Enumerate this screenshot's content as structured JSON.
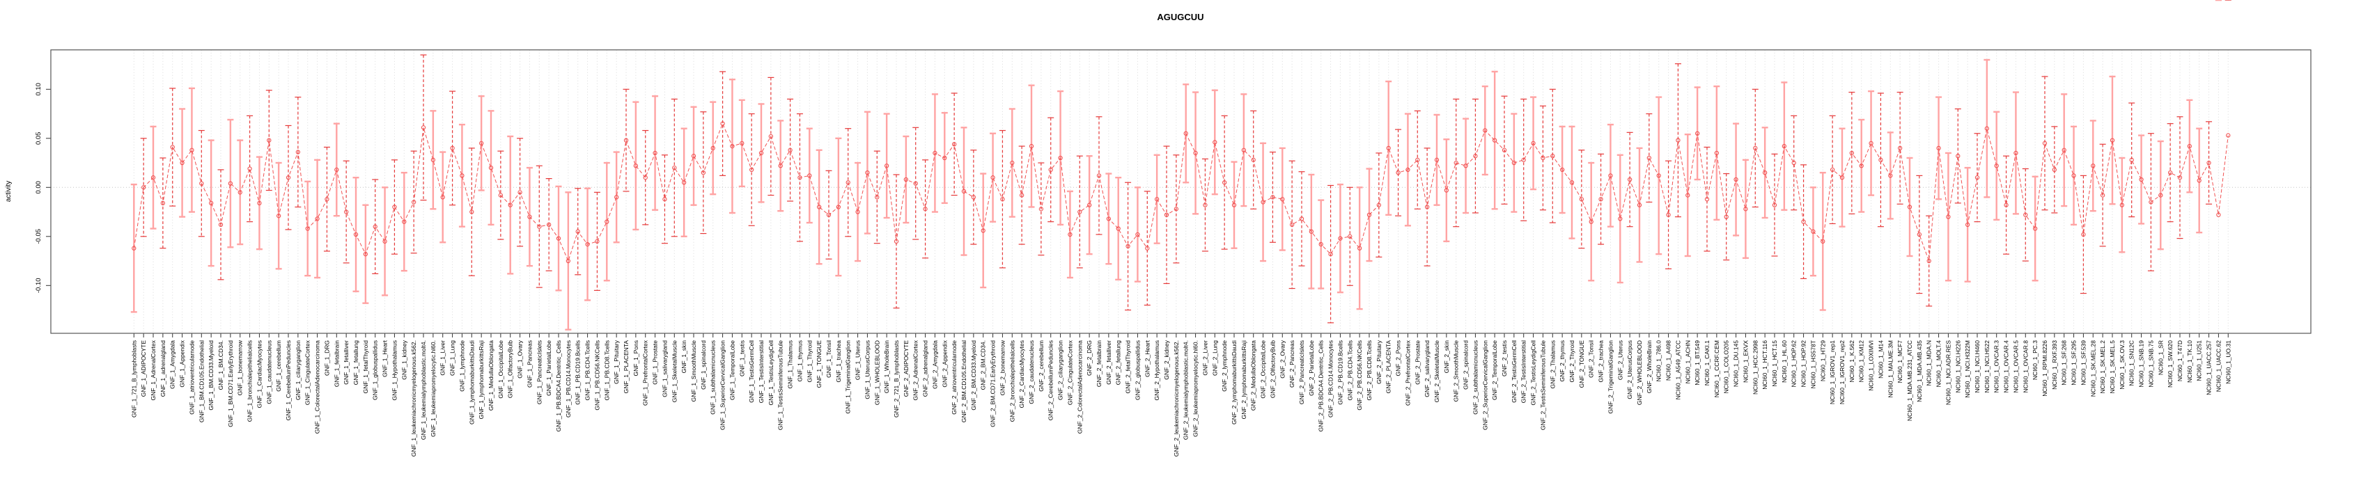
{
  "title": "AGUGCUU",
  "chart_data": {
    "type": "line",
    "title": "AGUGCUU",
    "xlabel": "",
    "ylabel": "activity",
    "ylim": [
      -0.149,
      0.14
    ],
    "yticks": [
      -0.1,
      -0.05,
      0.0,
      0.05,
      0.1
    ],
    "ytick_labels": [
      "-0.10",
      "-0.05",
      "0.00",
      "0.05",
      "0.10"
    ],
    "grid": "dotted vertical line at every category; dotted horizontal line at y=0",
    "legend_position": "none",
    "marker": "open-circle",
    "colors": {
      "line": "#f05050",
      "marker": "#f05050",
      "errorbar_light": "#ffa3a3",
      "errorbar_dark": "#e63939",
      "grid": "#d9d9d9",
      "zero_line": "#c4c4c4",
      "box": "#555555"
    },
    "categories": [
      "GNF_1_721_B_lymphoblasts",
      "GNF_1_ADIPOCYTE",
      "GNF_1_AdrenalCortex",
      "GNF_1_adrenalgland",
      "GNF_1_Amygdala",
      "GNF_1_Appendix",
      "GNF_1_atrioventricularnode",
      "GNF_1_BM.CD105.Endothelial",
      "GNF_1_BM.CD33.Myeloid",
      "GNF_1_BM.CD34.",
      "GNF_1_BM.CD71.EarlyErythroid",
      "GNF_1_bonemarrow",
      "GNF_1_bronchialepithelialcells",
      "GNF_1_CardiacMyocytes",
      "GNF_1_caudatenucleus",
      "GNF_1_cerebellum",
      "GNF_1_CerebellumPeduncles",
      "GNF_1_ciliaryganglion",
      "GNF_1_CingulateCortex",
      "GNF_1_ColorectalAdenocarcinoma",
      "GNF_1_DRG",
      "GNF_1_fetalbrain",
      "GNF_1_fetalliver",
      "GNF_1_fetallung",
      "GNF_1_fetalThyroid",
      "GNF_1_globuspallidus",
      "GNF_1_Heart",
      "GNF_1_Hypothalamus",
      "GNF_1_kidney",
      "GNF_1_leukemiachronicmyelogenous.k562.",
      "GNF_1_leukemialymphoblastic.molt4.",
      "GNF_1_leukemiapromyelocytic.hl60.",
      "GNF_1_Liver",
      "GNF_1_Lung",
      "GNF_1_lymphnode",
      "GNF_1_lymphomaburkittsDaudi",
      "GNF_1_lymphomaburkittsRaji",
      "GNF_1_MedullaOblongata",
      "GNF_1_OccipitalLobe",
      "GNF_1_OlfactoryBulb",
      "GNF_1_Ovary",
      "GNF_1_Pancreas",
      "GNF_1_PancreaticIslets",
      "GNF_1_ParietalLobe",
      "GNF_1_PB.BDCA4.Dentritic_Cells",
      "GNF_1_PB.CD14.Monocytes",
      "GNF_1_PB.CD19.Bcells",
      "GNF_1_PB.CD4.Tcells",
      "GNF_1_PB.CD56.NKCells",
      "GNF_1_PB.CD8.Tcells",
      "GNF_1_Pituitary",
      "GNF_1_PLACENTA",
      "GNF_1_Pons",
      "GNF_1_PrefrontalCortex",
      "GNF_1_Prostate",
      "GNF_1_salivarygland",
      "GNF_1_SkeletalMuscle",
      "GNF_1_skin",
      "GNF_1_SmoothMuscle",
      "GNF_1_spinalcord",
      "GNF_1_subthalamicnucleus",
      "GNF_1_SuperiorCervicalGanglion",
      "GNF_1_TemporalLobe",
      "GNF_1_testis",
      "GNF_1_TestisGermCell",
      "GNF_1_TestisInterstitial",
      "GNF_1_TestisLeydigCell",
      "GNF_1_TestisSeminiferousTubule",
      "GNF_1_Thalamus",
      "GNF_1_thymus",
      "GNF_1_Thyroid",
      "GNF_1_TONGUE",
      "GNF_1_Tonsil",
      "GNF_1_trachea",
      "GNF_1_TrigeminalGanglion",
      "GNF_1_Uterus",
      "GNF_1_UterusCorpus",
      "GNF_1_WHOLEBLOOD",
      "GNF_1_WholeBrain",
      "GNF_2_721_B_lymphoblasts",
      "GNF_2_ADIPOCYTE",
      "GNF_2_AdrenalCortex",
      "GNF_2_adrenalgland",
      "GNF_2_Amygdala",
      "GNF_2_Appendix",
      "GNF_2_atrioventricularnode",
      "GNF_2_BM.CD105.Endothelial",
      "GNF_2_BM.CD33.Myeloid",
      "GNF_2_BM.CD34.",
      "GNF_2_BM.CD71.EarlyErythroid",
      "GNF_2_bonemarrow",
      "GNF_2_bronchialepithelialcells",
      "GNF_2_CardiacMyocytes",
      "GNF_2_caudatenucleus",
      "GNF_2_cerebellum",
      "GNF_2_CerebellumPeduncles",
      "GNF_2_ciliaryganglion",
      "GNF_2_CingulateCortex",
      "GNF_2_ColorectalAdenocarcinoma",
      "GNF_2_DRG",
      "GNF_2_fetalbrain",
      "GNF_2_fetalliver",
      "GNF_2_fetallung",
      "GNF_2_fetalThyroid",
      "GNF_2_globuspallidus",
      "GNF_2_Heart",
      "GNF_2_Hypothalamus",
      "GNF_2_kidney",
      "GNF_2_leukemiachronicmyelogenous.k562.",
      "GNF_2_leukemialymphoblastic.molt4.",
      "GNF_2_leukemiapromyelocytic.hl60.",
      "GNF_2_Liver",
      "GNF_2_Lung",
      "GNF_2_lymphnode",
      "GNF_2_lymphomaburkittsDaudi",
      "GNF_2_lymphomaburkittsRaji",
      "GNF_2_MedullaOblongata",
      "GNF_2_OccipitalLobe",
      "GNF_2_OlfactoryBulb",
      "GNF_2_Ovary",
      "GNF_2_Pancreas",
      "GNF_2_PancreaticIslets",
      "GNF_2_ParietalLobe",
      "GNF_2_PB.BDCA4.Dentritic_Cells",
      "GNF_2_PB.CD14.Monocytes",
      "GNF_2_PB.CD19.Bcells",
      "GNF_2_PB.CD4.Tcells",
      "GNF_2_PB.CD56.NKCells",
      "GNF_2_PB.CD8.Tcells",
      "GNF_2_Pituitary",
      "GNF_2_PLACENTA",
      "GNF_2_Pons",
      "GNF_2_PrefrontalCortex",
      "GNF_2_Prostate",
      "GNF_2_salivarygland",
      "GNF_2_SkeletalMuscle",
      "GNF_2_skin",
      "GNF_2_SmoothMuscle",
      "GNF_2_spinalcord",
      "GNF_2_subthalamicnucleus",
      "GNF_2_SuperiorCervicalGanglion",
      "GNF_2_TemporalLobe",
      "GNF_2_testis",
      "GNF_2_TestisGermCell",
      "GNF_2_TestisInterstitial",
      "GNF_2_TestisLeydigCell",
      "GNF_2_TestisSeminiferousTubule",
      "GNF_2_Thalamus",
      "GNF_2_thymus",
      "GNF_2_Thyroid",
      "GNF_2_TONGUE",
      "GNF_2_Tonsil",
      "GNF_2_trachea",
      "GNF_2_TrigeminalGanglion",
      "GNF_2_Uterus",
      "GNF_2_UterusCorpus",
      "GNF_2_WHOLEBLOOD",
      "GNF_2_WholeBrain",
      "NCI60_1_786.0",
      "NCI60_1_A498",
      "NCI60_1_A549_ATCC",
      "NCI60_1_ACHN",
      "NCI60_1_BT.549",
      "NCI60_1_CAKI.1",
      "NCI60_1_CCRF.CEM",
      "NCI60_1_COLO205",
      "NCI60_1_DU.145",
      "NCI60_1_EKVX",
      "NCI60_1_HCC.2998",
      "NCI60_1_HCT.116",
      "NCI60_1_HCT.15",
      "NCI60_1_HL.60",
      "NCI60_1_HOP.62",
      "NCI60_1_HOP.92",
      "NCI60_1_HS578T",
      "NCI60_1_HT29",
      "NCI60_1_IGROV1_rep1",
      "NCI60_1_IGROV1_rep2",
      "NCI60_1_K.562",
      "NCI60_1_KM12",
      "NCI60_1_LOXIMVI",
      "NCI60_1_M14",
      "NCI60_1_MALME.3M",
      "NCI60_1_MCF7",
      "NCI60_1_MDA.MB.231_ATCC",
      "NCI60_1_MDA.MB.435",
      "NCI60_1_MDA.N",
      "NCI60_1_MOLT.4",
      "NCI60_1_NCI.ADR.RES",
      "NCI60_1_NCI.H226",
      "NCI60_1_NCI.H322M",
      "NCI60_1_NCI.H460",
      "NCI60_1_NCI.H522",
      "NCI60_1_OVCAR.3",
      "NCI60_1_OVCAR.4",
      "NCI60_1_OVCAR.5",
      "NCI60_1_OVCAR.8",
      "NCI60_1_PC.3",
      "NCI60_1_RPMI.8226",
      "NCI60_1_RXF.393",
      "NCI60_1_SF.268",
      "NCI60_1_SF.295",
      "NCI60_1_SF.539",
      "NCI60_1_SK.MEL.28",
      "NCI60_1_SK.MEL.2",
      "NCI60_1_SK.MEL.5",
      "NCI60_1_SK.OV.3",
      "NCI60_1_SN12C",
      "NCI60_1_SNB.19",
      "NCI60_1_SNB.75",
      "NCI60_1_SR",
      "NCI60_1_SW.620",
      "NCI60_1_T47D",
      "NCI60_1_TK.10",
      "NCI60_1_U251",
      "NCI60_1_UACC.257",
      "NCI60_1_UACC.62",
      "NCI60_1_UO.31"
    ],
    "series": [
      {
        "name": "activity",
        "values": [
          -0.062,
          0.0,
          0.01,
          -0.016,
          0.041,
          0.025,
          0.038,
          0.004,
          -0.016,
          -0.038,
          0.004,
          -0.005,
          0.019,
          -0.016,
          0.048,
          -0.029,
          0.01,
          0.036,
          -0.042,
          -0.032,
          -0.012,
          0.018,
          -0.025,
          -0.048,
          -0.068,
          -0.04,
          -0.055,
          -0.02,
          -0.035,
          -0.015,
          0.061,
          0.028,
          -0.01,
          0.04,
          0.012,
          -0.025,
          0.045,
          0.02,
          -0.008,
          -0.018,
          -0.005,
          -0.03,
          -0.04,
          -0.038,
          -0.052,
          -0.075,
          -0.045,
          -0.058,
          -0.055,
          -0.035,
          -0.01,
          0.048,
          0.022,
          0.01,
          0.035,
          -0.012,
          0.02,
          0.005,
          0.032,
          0.015,
          0.04,
          0.065,
          0.042,
          0.045,
          0.018,
          0.035,
          0.052,
          0.022,
          0.038,
          0.01,
          0.012,
          -0.02,
          -0.028,
          -0.02,
          0.005,
          -0.025,
          0.015,
          -0.01,
          0.022,
          -0.055,
          0.008,
          0.004,
          -0.022,
          0.035,
          0.03,
          0.044,
          -0.004,
          -0.01,
          -0.044,
          0.01,
          -0.012,
          0.025,
          -0.008,
          0.042,
          -0.022,
          0.018,
          0.03,
          -0.048,
          -0.025,
          -0.018,
          0.012,
          -0.032,
          -0.042,
          -0.06,
          -0.048,
          -0.062,
          -0.012,
          -0.028,
          -0.022,
          0.055,
          0.035,
          -0.018,
          0.046,
          0.005,
          -0.018,
          0.038,
          0.028,
          -0.015,
          -0.01,
          -0.012,
          -0.038,
          -0.032,
          -0.045,
          -0.058,
          -0.068,
          -0.052,
          -0.05,
          -0.062,
          -0.028,
          -0.018,
          0.04,
          0.015,
          0.018,
          0.028,
          -0.02,
          0.028,
          -0.003,
          0.025,
          0.022,
          0.032,
          0.058,
          0.048,
          0.038,
          0.025,
          0.028,
          0.045,
          0.03,
          0.032,
          0.018,
          0.005,
          -0.012,
          -0.035,
          -0.012,
          0.012,
          -0.032,
          0.008,
          -0.018,
          0.03,
          0.012,
          -0.028,
          0.048,
          -0.008,
          0.055,
          -0.012,
          0.035,
          -0.03,
          0.008,
          -0.022,
          0.04,
          0.015,
          -0.018,
          0.042,
          0.025,
          -0.035,
          -0.045,
          -0.055,
          0.018,
          0.01,
          0.035,
          0.022,
          0.045,
          0.028,
          0.012,
          0.04,
          -0.02,
          -0.048,
          -0.075,
          0.04,
          -0.03,
          0.032,
          -0.038,
          0.01,
          0.06,
          0.022,
          -0.018,
          0.035,
          -0.028,
          -0.042,
          0.045,
          0.018,
          0.038,
          0.012,
          -0.048,
          0.022,
          -0.008,
          0.048,
          -0.018,
          0.028,
          0.008,
          -0.015,
          -0.008,
          0.015,
          0.01,
          0.042,
          0.007,
          0.025,
          -0.028,
          0.053
        ],
        "err": [
          0.065,
          0.05,
          0.052,
          0.046,
          0.06,
          0.055,
          0.063,
          0.054,
          0.064,
          0.056,
          0.065,
          0.053,
          0.054,
          0.047,
          0.051,
          0.054,
          0.053,
          0.056,
          0.048,
          0.06,
          0.053,
          0.047,
          0.052,
          0.058,
          0.05,
          0.048,
          0.055,
          0.048,
          0.05,
          0.052,
          0.074,
          0.05,
          0.046,
          0.058,
          0.052,
          0.065,
          0.048,
          0.058,
          0.045,
          0.07,
          0.055,
          0.05,
          0.062,
          0.047,
          0.053,
          0.07,
          0.044,
          0.057,
          0.05,
          0.06,
          0.046,
          0.052,
          0.065,
          0.048,
          0.058,
          0.045,
          0.07,
          0.055,
          0.05,
          0.062,
          0.047,
          0.053,
          0.068,
          0.044,
          0.057,
          0.05,
          0.06,
          0.046,
          0.052,
          0.065,
          0.048,
          0.058,
          0.045,
          0.07,
          0.055,
          0.05,
          0.062,
          0.047,
          0.053,
          0.068,
          0.044,
          0.057,
          0.05,
          0.06,
          0.046,
          0.052,
          0.065,
          0.048,
          0.058,
          0.045,
          0.07,
          0.055,
          0.05,
          0.062,
          0.047,
          0.053,
          0.068,
          0.044,
          0.057,
          0.05,
          0.06,
          0.046,
          0.052,
          0.065,
          0.048,
          0.058,
          0.045,
          0.07,
          0.055,
          0.05,
          0.062,
          0.047,
          0.053,
          0.068,
          0.044,
          0.057,
          0.05,
          0.06,
          0.046,
          0.052,
          0.065,
          0.048,
          0.058,
          0.045,
          0.07,
          0.055,
          0.05,
          0.062,
          0.047,
          0.053,
          0.068,
          0.044,
          0.057,
          0.05,
          0.06,
          0.046,
          0.052,
          0.065,
          0.048,
          0.058,
          0.045,
          0.07,
          0.055,
          0.05,
          0.062,
          0.047,
          0.053,
          0.068,
          0.044,
          0.057,
          0.05,
          0.06,
          0.046,
          0.052,
          0.065,
          0.048,
          0.058,
          0.045,
          0.08,
          0.055,
          0.078,
          0.062,
          0.047,
          0.053,
          0.068,
          0.044,
          0.057,
          0.05,
          0.06,
          0.046,
          0.052,
          0.065,
          0.048,
          0.058,
          0.045,
          0.07,
          0.055,
          0.05,
          0.062,
          0.047,
          0.053,
          0.068,
          0.044,
          0.057,
          0.05,
          0.06,
          0.046,
          0.052,
          0.065,
          0.048,
          0.058,
          0.045,
          0.07,
          0.055,
          0.05,
          0.062,
          0.047,
          0.053,
          0.068,
          0.044,
          0.057,
          0.05,
          0.06,
          0.046,
          0.052,
          0.065,
          0.048,
          0.058,
          0.045,
          0.07,
          0.055,
          0.05,
          0.062,
          0.047,
          0.053,
          0.042
        ],
        "bar_styles": "ldlddlldldlldldlddlldldlldldlddlldldlldldlddlldldlldldlddlldldlldldlddlldldlldldlddlldldlldldlddlldldlldldlddlldldlldldlddlldldlldldlddlldldlldldlddlldldlldldlddlldldlldldlddlldldlldldlddlldldlldldlddlldldlldldlddlldldlld"
      }
    ]
  }
}
